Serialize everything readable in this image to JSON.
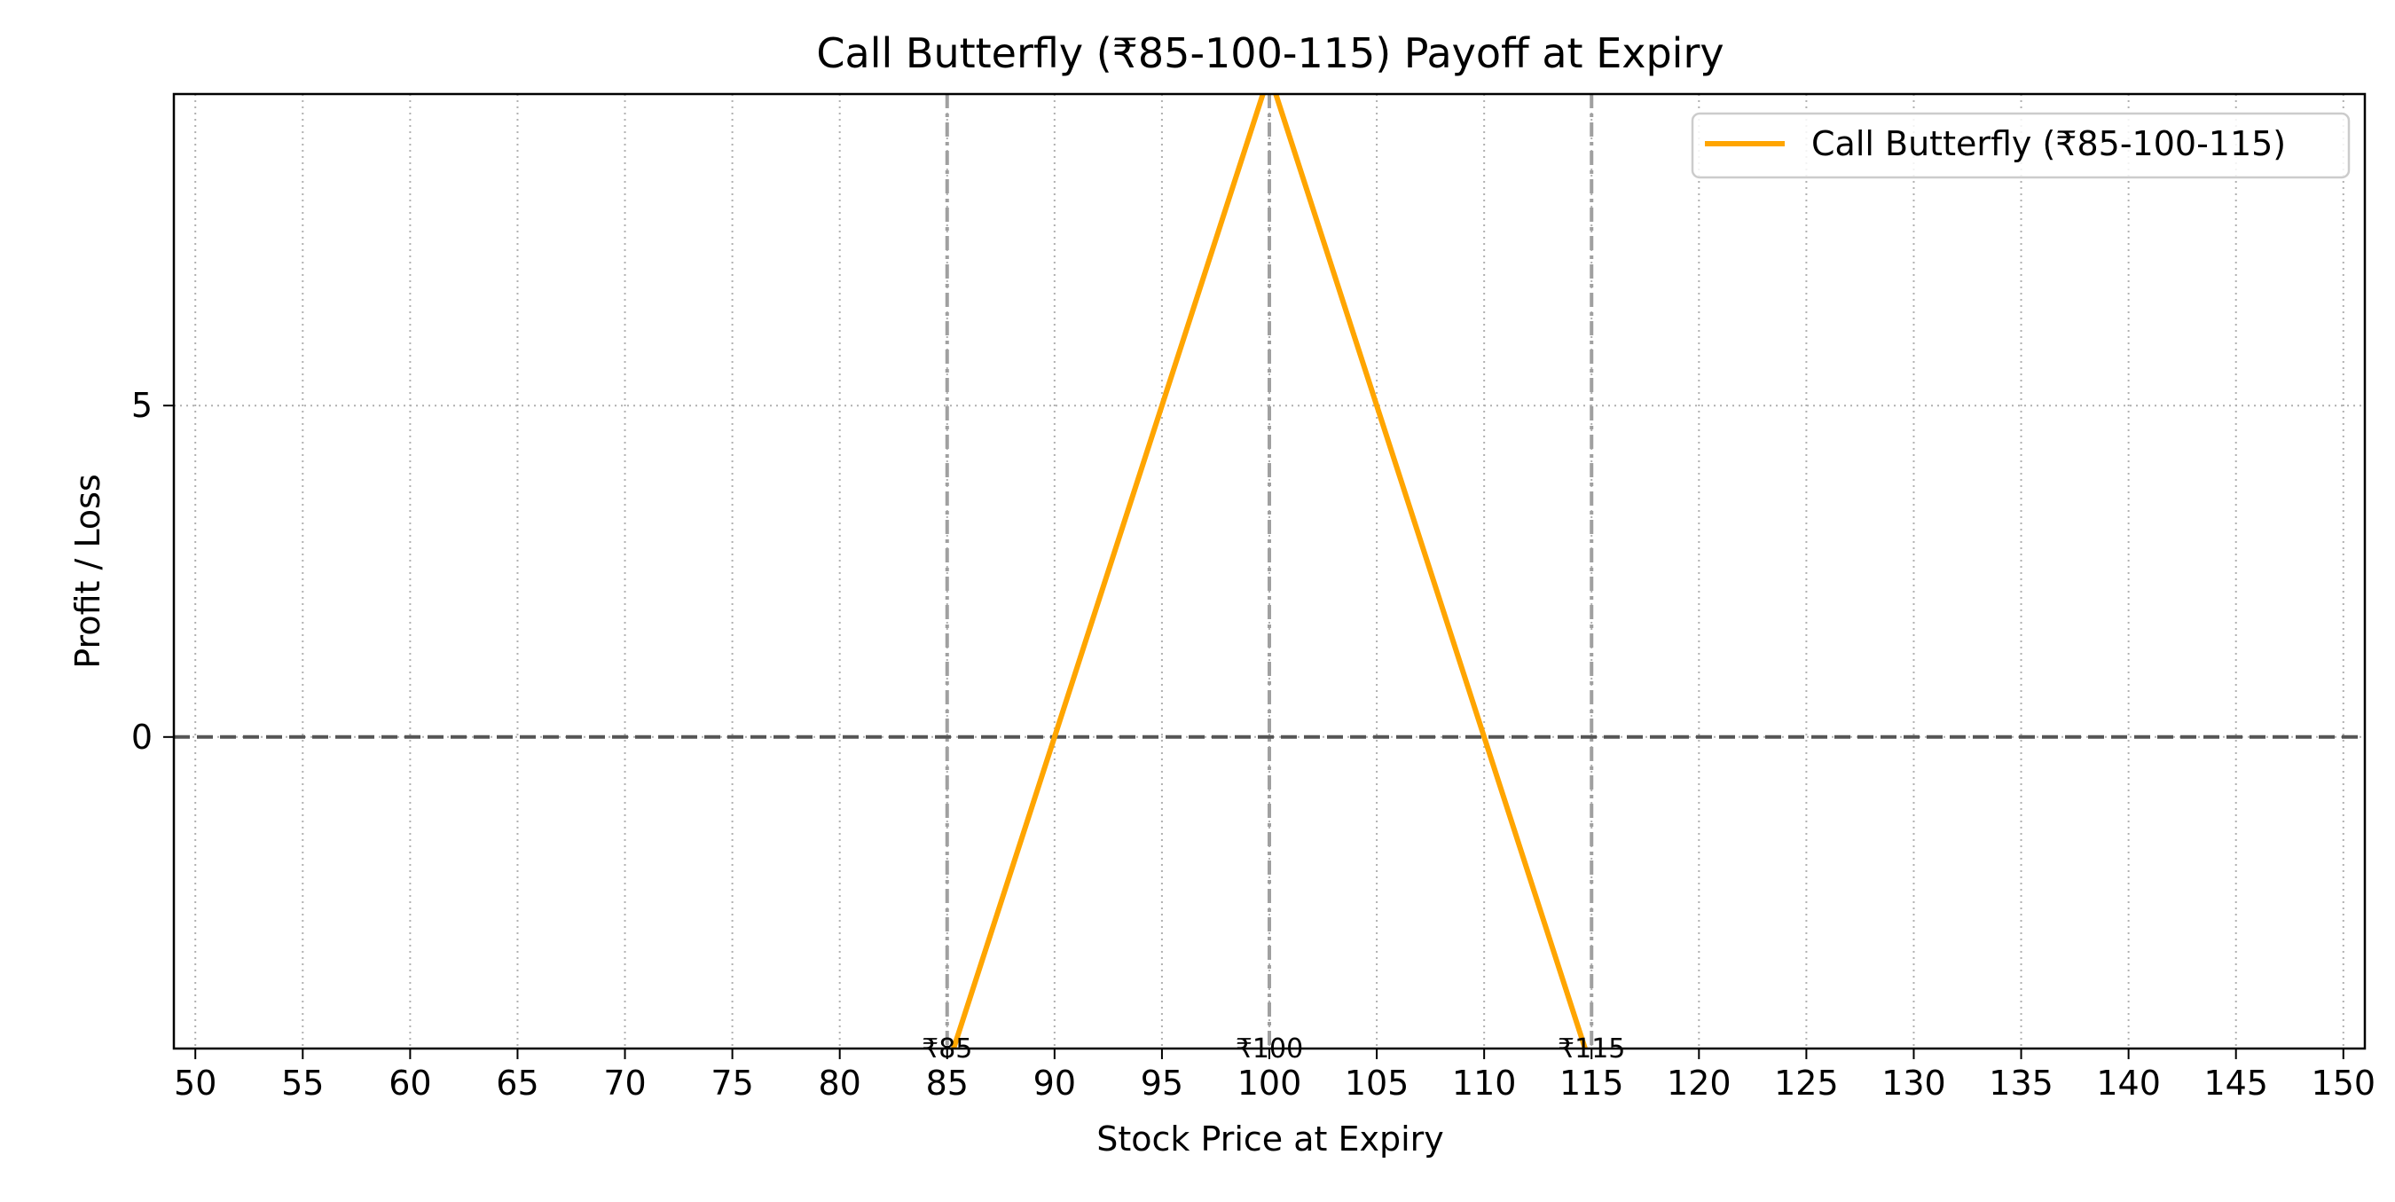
{
  "chart_data": {
    "type": "line",
    "title": "Call Butterfly (₹85-100-115) Payoff at Expiry",
    "xlabel": "Stock Price at Expiry",
    "ylabel": "Profit / Loss",
    "xlim": [
      49,
      151
    ],
    "ylim": [
      -4.7,
      9.7
    ],
    "xticks": [
      50,
      55,
      60,
      65,
      70,
      75,
      80,
      85,
      90,
      95,
      100,
      105,
      110,
      115,
      120,
      125,
      130,
      135,
      140,
      145,
      150
    ],
    "yticks": [
      0,
      5
    ],
    "grid": true,
    "legend_position": "top-right",
    "series": [
      {
        "name": "Call Butterfly (₹85-100-115)",
        "color": "#FFA500",
        "x": [
          50,
          85,
          100,
          115,
          150
        ],
        "y": [
          -5,
          -5,
          10,
          -5,
          -5
        ]
      }
    ],
    "zero_line": {
      "y": 0,
      "color": "#555555"
    },
    "strike_lines": [
      {
        "x": 85,
        "label": "₹85"
      },
      {
        "x": 100,
        "label": "₹100"
      },
      {
        "x": 115,
        "label": "₹115"
      }
    ],
    "colors": {
      "strike_line": "#A0A0A0",
      "grid": "#B0B0B0",
      "axes": "#000000"
    }
  }
}
